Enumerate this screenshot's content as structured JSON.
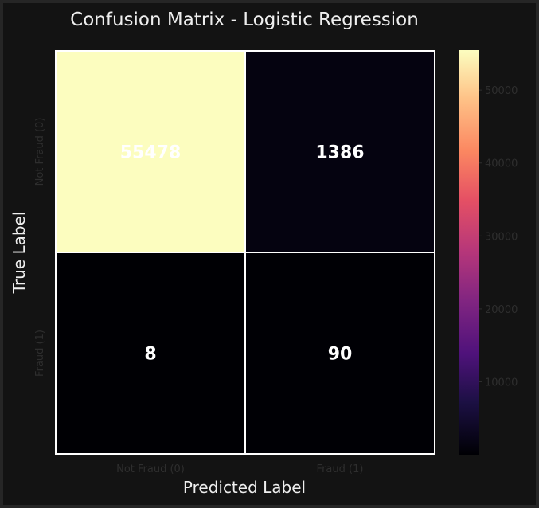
{
  "chart_data": {
    "type": "heatmap",
    "title": "Confusion Matrix - Logistic Regression",
    "xlabel": "Predicted Label",
    "ylabel": "True Label",
    "x_categories": [
      "Not Fraud (0)",
      "Fraud (1)"
    ],
    "y_categories": [
      "Not Fraud (0)",
      "Fraud (1)"
    ],
    "values": [
      [
        55478,
        1386
      ],
      [
        8,
        90
      ]
    ],
    "colormap": "magma",
    "colorbar": {
      "vmin": 8,
      "vmax": 55478,
      "ticks": [
        10000,
        20000,
        30000,
        40000,
        50000
      ],
      "tick_labels": [
        "10000",
        "20000",
        "30000",
        "40000",
        "50000"
      ]
    },
    "colors": {
      "background": "#131313",
      "text": "#eeeeee",
      "tick_text": "#2e2e2e",
      "cell_border": "#ffffff"
    }
  }
}
